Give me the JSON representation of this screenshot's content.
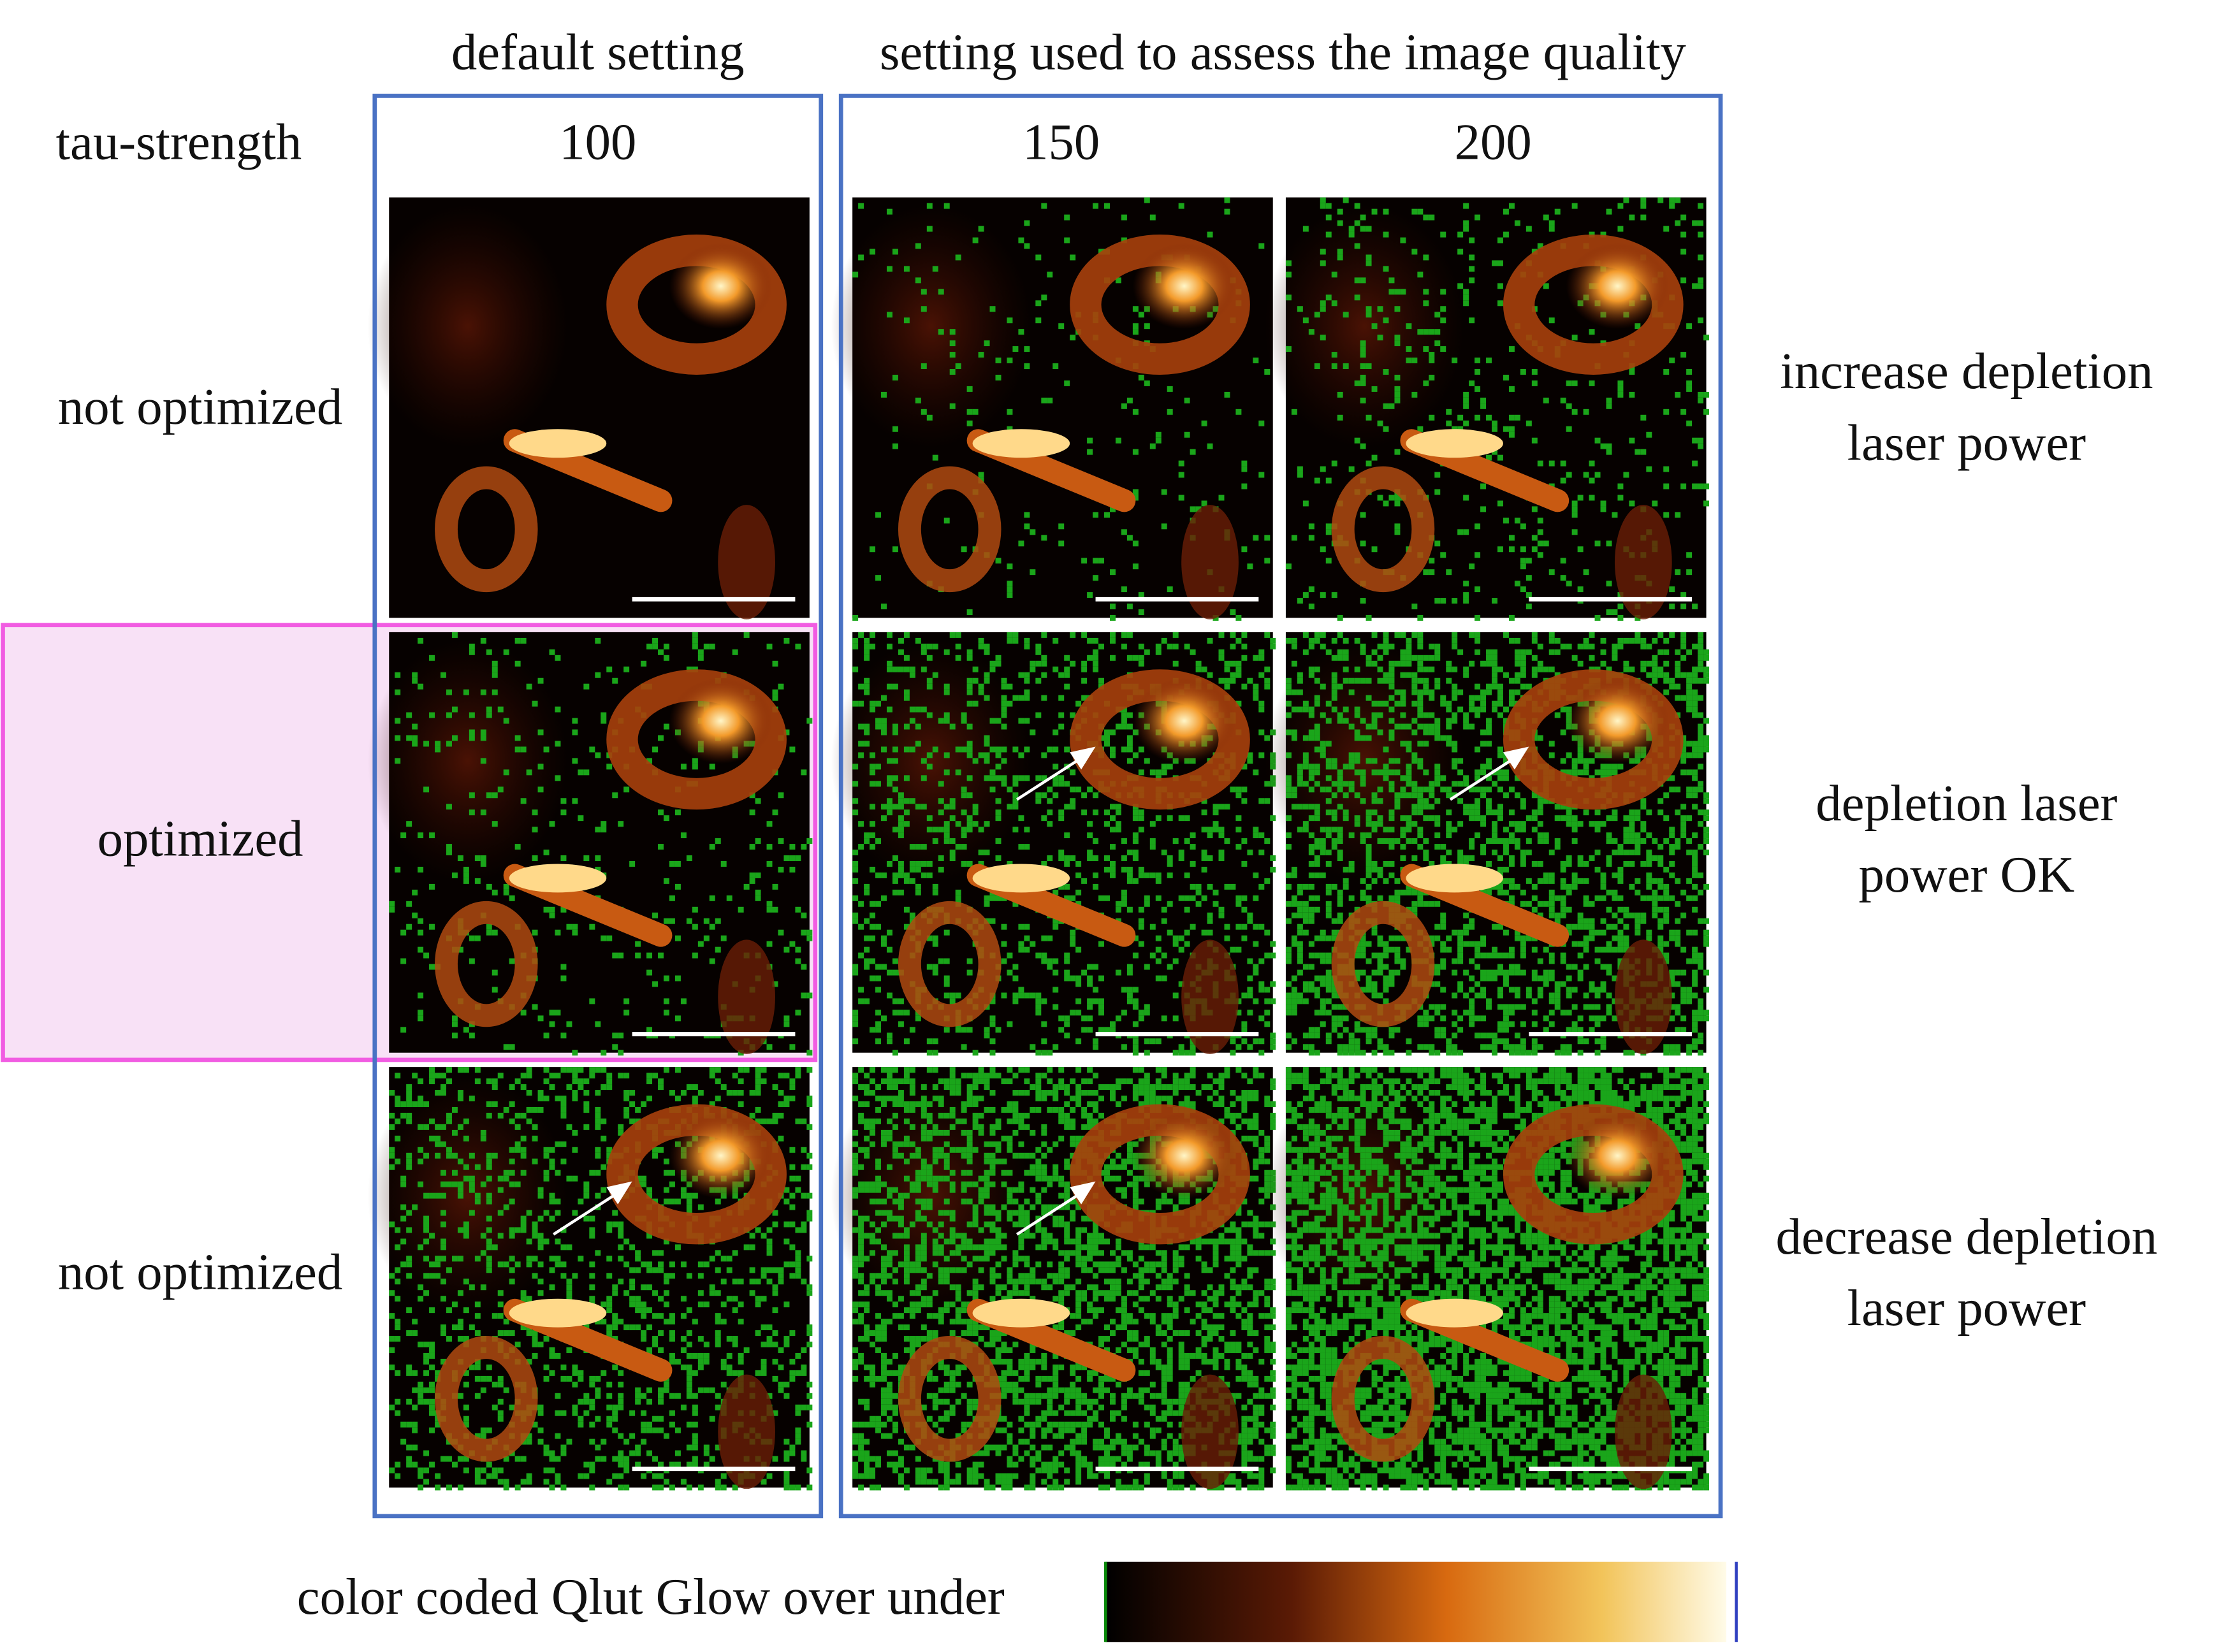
{
  "header": {
    "groups": [
      "default setting",
      "setting used to assess the image quality"
    ],
    "row_header": "tau-strength",
    "columns": [
      "100",
      "150",
      "200"
    ]
  },
  "rows": [
    {
      "label": "not optimized",
      "advice": "increase depletion laser power"
    },
    {
      "label": "optimized",
      "advice": "depletion laser power OK"
    },
    {
      "label": "not optimized",
      "advice": "decrease depletion laser power"
    }
  ],
  "colorbar": {
    "label": "color coded Qlut Glow over under"
  }
}
